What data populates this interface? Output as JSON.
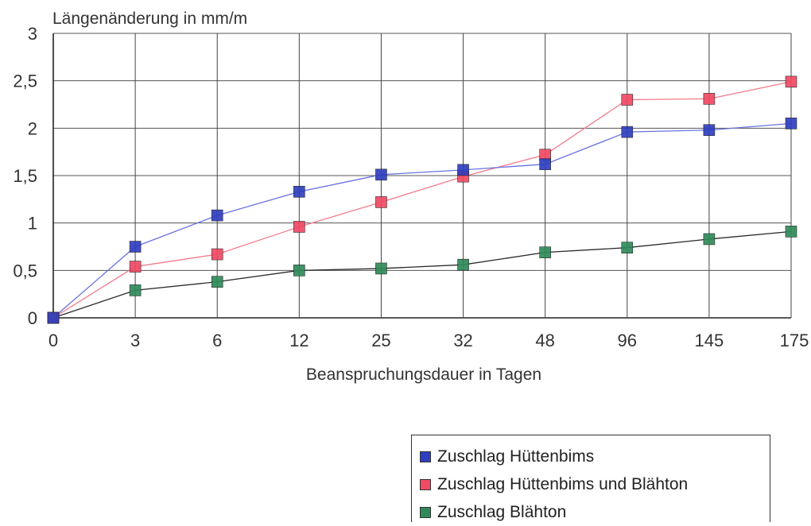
{
  "chart_data": {
    "type": "line",
    "title": "",
    "ylabel": "Längenänderung in mm/m",
    "xlabel": "Beanspruchungsdauer in Tagen",
    "categories": [
      "0",
      "3",
      "6",
      "12",
      "25",
      "32",
      "48",
      "96",
      "145",
      "175"
    ],
    "y_ticks": [
      "0",
      "0,5",
      "1",
      "1,5",
      "2",
      "2,5",
      "3"
    ],
    "ylim": [
      0,
      3
    ],
    "grid": true,
    "legend_position": "bottom-right",
    "series": [
      {
        "name": "Zuschlag Hüttenbims",
        "color": "#2f3fbf",
        "line_color": "#6a72e0",
        "values": [
          0,
          0.75,
          1.08,
          1.33,
          1.51,
          1.56,
          1.62,
          1.96,
          1.98,
          2.05
        ]
      },
      {
        "name": "Zuschlag Hüttenbims und Blähton",
        "color": "#f04a64",
        "line_color": "#f27b8c",
        "values": [
          0,
          0.54,
          0.67,
          0.96,
          1.22,
          1.49,
          1.72,
          2.3,
          2.31,
          2.49
        ]
      },
      {
        "name": "Zuschlag Blähton",
        "color": "#2f8a5a",
        "line_color": "#2a2a2a",
        "values": [
          0,
          0.29,
          0.38,
          0.5,
          0.52,
          0.56,
          0.69,
          0.74,
          0.83,
          0.91
        ]
      }
    ]
  }
}
